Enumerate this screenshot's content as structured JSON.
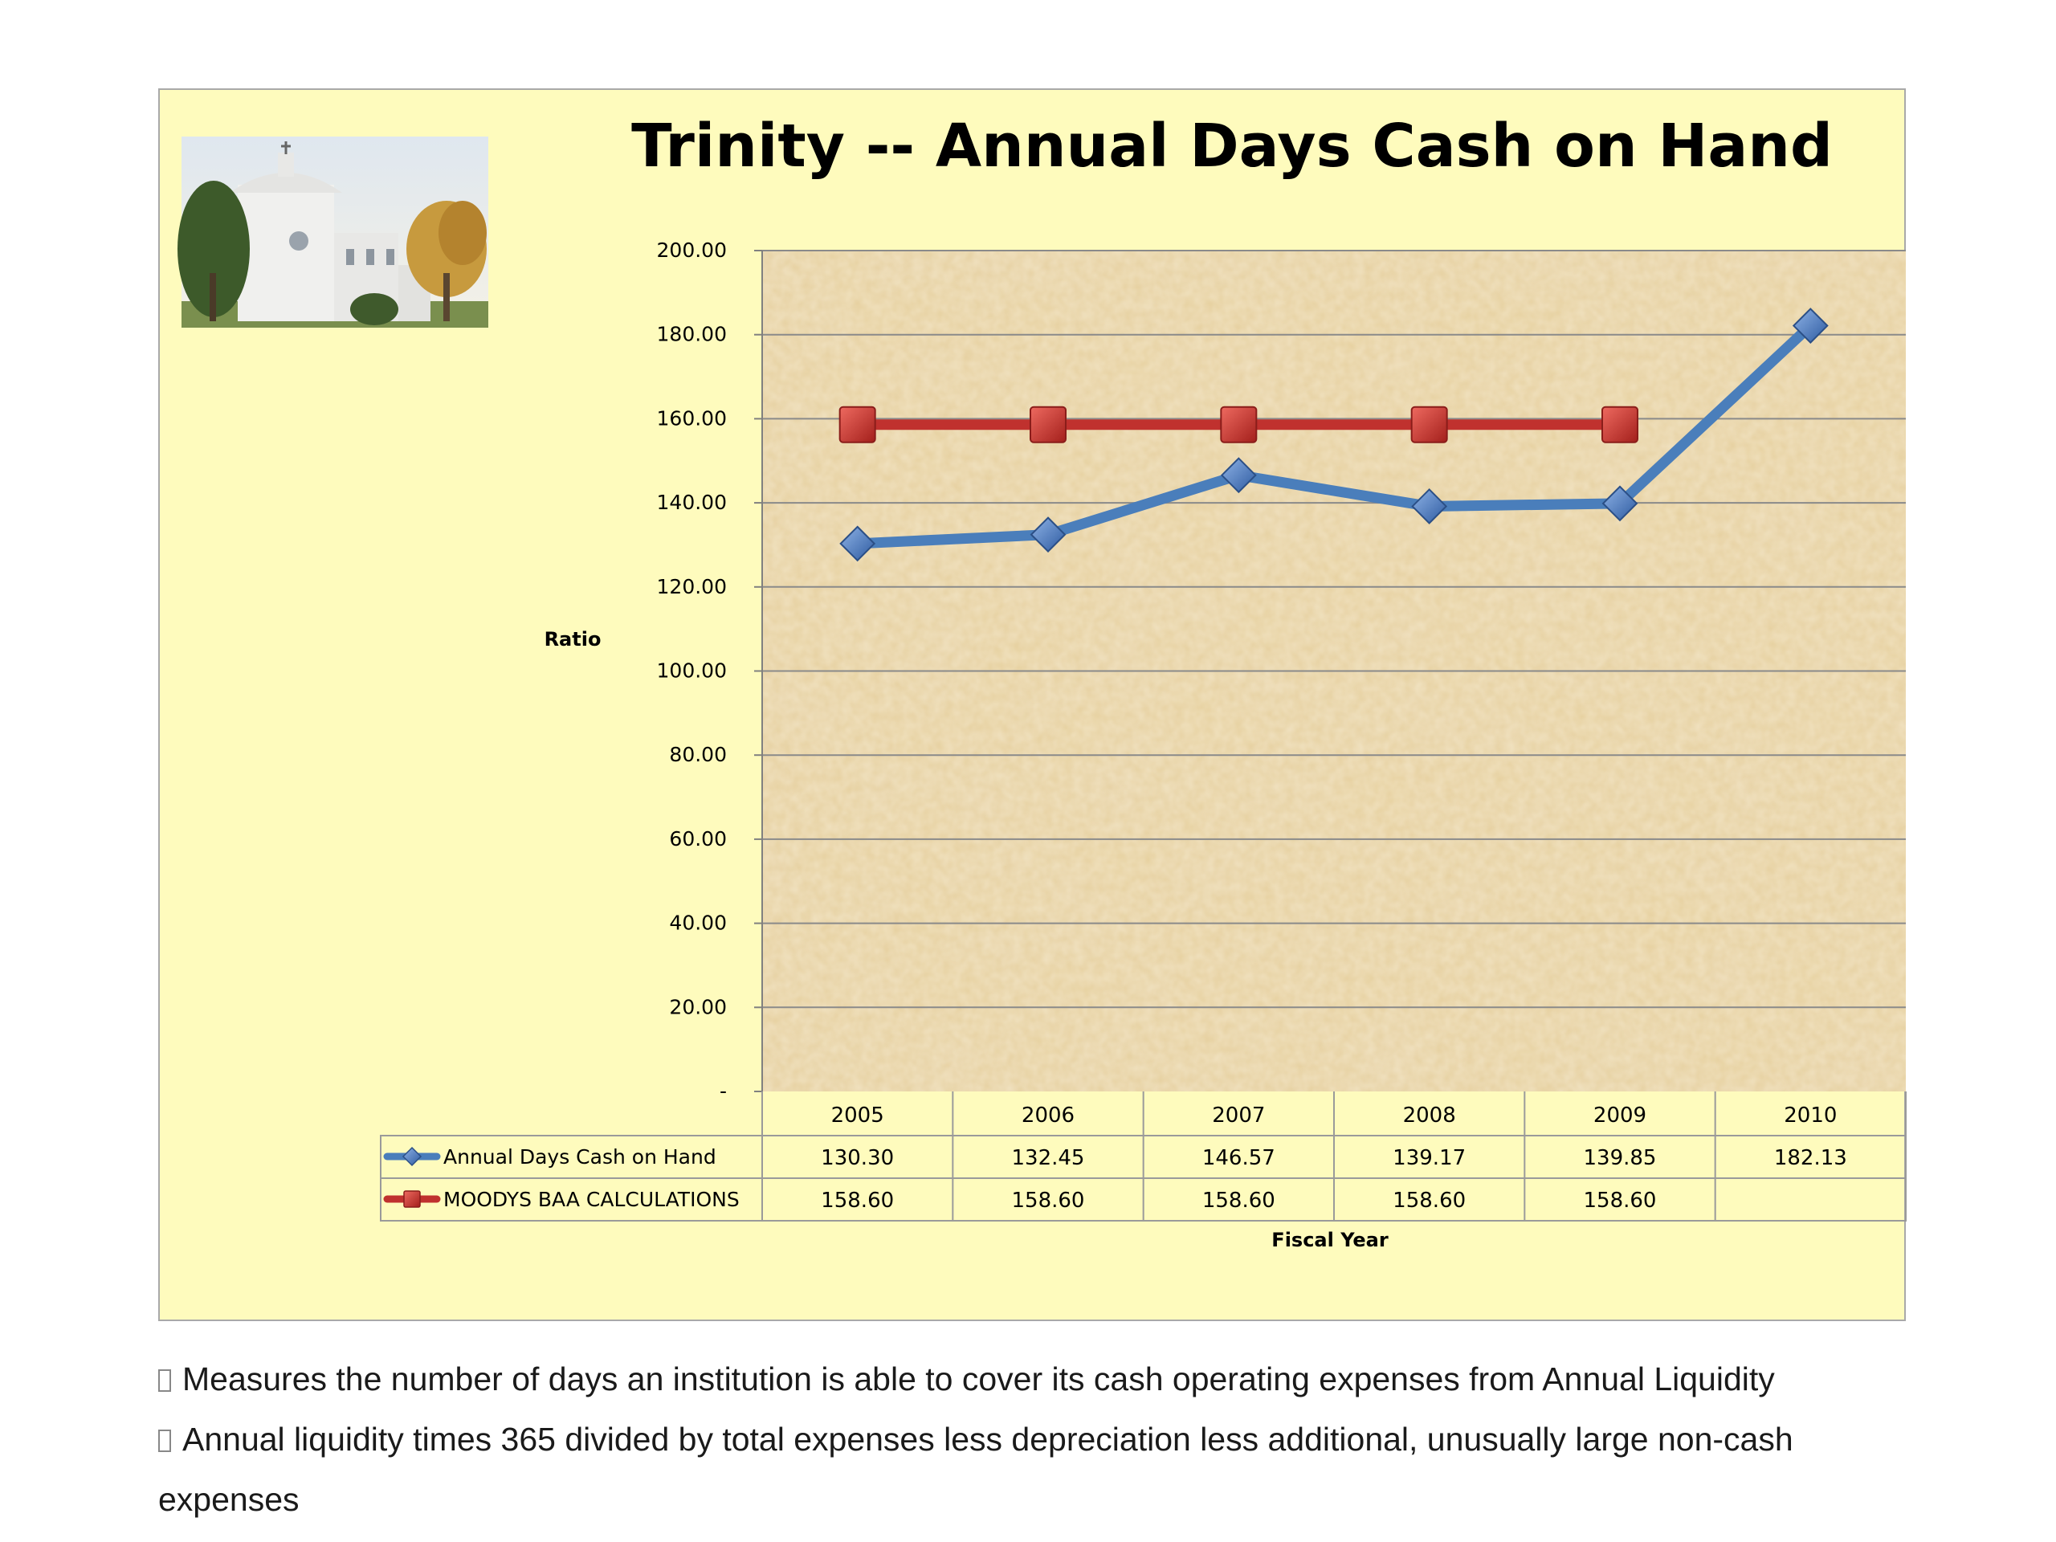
{
  "chart_data": {
    "type": "line",
    "title": "Trinity -- Annual Days Cash on Hand",
    "xlabel": "Fiscal Year",
    "ylabel": "Ratio",
    "categories": [
      "2005",
      "2006",
      "2007",
      "2008",
      "2009",
      "2010"
    ],
    "ylim": [
      0,
      200
    ],
    "yticks": [
      0,
      20,
      40,
      60,
      80,
      100,
      120,
      140,
      160,
      180,
      200
    ],
    "ytick_labels": [
      "-",
      "20.00",
      "40.00",
      "60.00",
      "80.00",
      "100.00",
      "120.00",
      "140.00",
      "160.00",
      "180.00",
      "200.00"
    ],
    "grid": true,
    "legend": "data-table",
    "series": [
      {
        "name": "Annual Days Cash on Hand",
        "marker": "diamond",
        "color": "#4a7ebb",
        "values": [
          130.3,
          132.45,
          146.57,
          139.17,
          139.85,
          182.13
        ],
        "labels": [
          "130.30",
          "132.45",
          "146.57",
          "139.17",
          "139.85",
          "182.13"
        ]
      },
      {
        "name": "MOODYS BAA CALCULATIONS",
        "marker": "square",
        "color": "#c0312e",
        "values": [
          158.6,
          158.6,
          158.6,
          158.6,
          158.6,
          null
        ],
        "labels": [
          "158.60",
          "158.60",
          "158.60",
          "158.60",
          "158.60",
          ""
        ]
      }
    ]
  },
  "photo": {
    "name": "church-building-photo"
  },
  "colors": {
    "frame_bg": "#fefbbd",
    "plot_bg": "#e8d3a2",
    "gridline": "#7f7f7f"
  },
  "notes": [
    "Measures the number of days an institution is able to cover its cash operating expenses from Annual Liquidity",
    "Annual liquidity times 365 divided by total expenses less depreciation less additional, unusually large non-cash",
    "expenses"
  ]
}
